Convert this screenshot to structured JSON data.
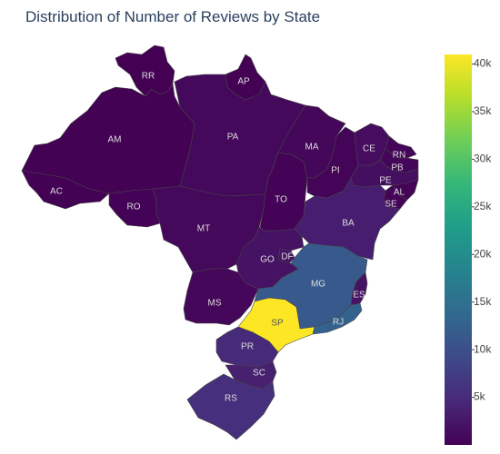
{
  "title": "Distribution of Number of Reviews by State",
  "colorscale": [
    "#440154",
    "#482878",
    "#3e4989",
    "#31688e",
    "#26828e",
    "#1f9e89",
    "#35b779",
    "#6ece58",
    "#b5de2b",
    "#fde725"
  ],
  "colorbar": {
    "min": 0,
    "max": 41000,
    "ticks": [
      {
        "value": 5000,
        "label": "5k"
      },
      {
        "value": 10000,
        "label": "10k"
      },
      {
        "value": 15000,
        "label": "15k"
      },
      {
        "value": 20000,
        "label": "20k"
      },
      {
        "value": 25000,
        "label": "25k"
      },
      {
        "value": 30000,
        "label": "30k"
      },
      {
        "value": 35000,
        "label": "35k"
      },
      {
        "value": 40000,
        "label": "40k"
      }
    ]
  },
  "states": [
    {
      "code": "SP",
      "label": "SP",
      "reviews": 41000
    },
    {
      "code": "RJ",
      "label": "RJ",
      "reviews": 13000
    },
    {
      "code": "MG",
      "label": "MG",
      "reviews": 11500
    },
    {
      "code": "RS",
      "label": "RS",
      "reviews": 5500
    },
    {
      "code": "PR",
      "label": "PR",
      "reviews": 5000
    },
    {
      "code": "SC",
      "label": "SC",
      "reviews": 3600
    },
    {
      "code": "BA",
      "label": "BA",
      "reviews": 3400
    },
    {
      "code": "DF",
      "label": "DF",
      "reviews": 2100
    },
    {
      "code": "ES",
      "label": "ES",
      "reviews": 2000
    },
    {
      "code": "GO",
      "label": "GO",
      "reviews": 2000
    },
    {
      "code": "PE",
      "label": "PE",
      "reviews": 1650
    },
    {
      "code": "CE",
      "label": "CE",
      "reviews": 1330
    },
    {
      "code": "PA",
      "label": "PA",
      "reviews": 970
    },
    {
      "code": "MT",
      "label": "MT",
      "reviews": 900
    },
    {
      "code": "MA",
      "label": "MA",
      "reviews": 740
    },
    {
      "code": "MS",
      "label": "MS",
      "reviews": 710
    },
    {
      "code": "PB",
      "label": "PB",
      "reviews": 530
    },
    {
      "code": "PI",
      "label": "PI",
      "reviews": 490
    },
    {
      "code": "RN",
      "label": "RN",
      "reviews": 480
    },
    {
      "code": "AL",
      "label": "AL",
      "reviews": 410
    },
    {
      "code": "SE",
      "label": "SE",
      "reviews": 340
    },
    {
      "code": "TO",
      "label": "TO",
      "reviews": 280
    },
    {
      "code": "RO",
      "label": "RO",
      "reviews": 250
    },
    {
      "code": "AM",
      "label": "AM",
      "reviews": 150
    },
    {
      "code": "AC",
      "label": "AC",
      "reviews": 80
    },
    {
      "code": "AP",
      "label": "AP",
      "reviews": 70
    },
    {
      "code": "RR",
      "label": "RR",
      "reviews": 45
    }
  ]
}
